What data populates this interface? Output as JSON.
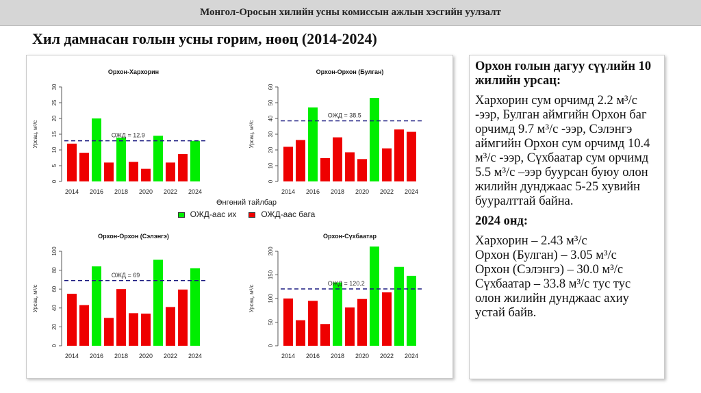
{
  "header": {
    "title": "Монгол-Оросын хилийн усны комиссын ажлын хэсгийн уулзалт"
  },
  "page_title": "Хил дамнасан голын усны горим, нөөц (2014-2024)",
  "colors": {
    "above": "#00ee00",
    "below": "#ee0000",
    "mean_line": "#1a1a80"
  },
  "legend": {
    "title": "Өнгөний тайлбар",
    "above_label": "ОЖД-аас их",
    "below_label": "ОЖД-аас бага"
  },
  "chart_data": [
    {
      "type": "bar",
      "title": "Орхон-Хархорин",
      "ylabel": "Урсац, м³/с",
      "x": [
        2014,
        2015,
        2016,
        2017,
        2018,
        2019,
        2020,
        2021,
        2022,
        2023,
        2024
      ],
      "x_tick_labels": [
        "2014",
        "2016",
        "2018",
        "2020",
        "2022",
        "2024"
      ],
      "values": [
        12,
        9.1,
        20,
        6,
        13.9,
        6.2,
        4,
        14.5,
        6,
        8.7,
        12.9
      ],
      "above_mean": [
        false,
        false,
        true,
        false,
        true,
        false,
        false,
        true,
        false,
        false,
        true
      ],
      "yticks": [
        0,
        5,
        10,
        15,
        20,
        25,
        30
      ],
      "ylim": [
        0,
        30
      ],
      "mean": 12.9,
      "mean_label": "ОЖД = 12.9"
    },
    {
      "type": "bar",
      "title": "Орхон-Орхон (Булган)",
      "ylabel": "Урсац, м³/с",
      "x": [
        2014,
        2015,
        2016,
        2017,
        2018,
        2019,
        2020,
        2021,
        2022,
        2023,
        2024
      ],
      "x_tick_labels": [
        "2014",
        "2016",
        "2018",
        "2020",
        "2022",
        "2024"
      ],
      "values": [
        22,
        26.3,
        47,
        14.8,
        28,
        18.5,
        14.2,
        53,
        21,
        33,
        31.5
      ],
      "above_mean": [
        false,
        false,
        true,
        false,
        false,
        false,
        false,
        true,
        false,
        false,
        false
      ],
      "yticks": [
        0,
        10,
        20,
        30,
        40,
        50,
        60
      ],
      "ylim": [
        0,
        60
      ],
      "mean": 38.5,
      "mean_label": "ОЖД = 38.5"
    },
    {
      "type": "bar",
      "title": "Орхон-Орхон (Сэлэнгэ)",
      "ylabel": "Урсац, м³/с",
      "x": [
        2014,
        2015,
        2016,
        2017,
        2018,
        2019,
        2020,
        2021,
        2022,
        2023,
        2024
      ],
      "x_tick_labels": [
        "2014",
        "2016",
        "2018",
        "2020",
        "2022",
        "2024"
      ],
      "values": [
        55,
        43,
        84,
        29.5,
        60,
        34.5,
        34,
        91,
        41,
        59.5,
        82
      ],
      "above_mean": [
        false,
        false,
        true,
        false,
        false,
        false,
        false,
        true,
        false,
        false,
        true
      ],
      "yticks": [
        0,
        20,
        40,
        60,
        80,
        100
      ],
      "ylim": [
        0,
        100
      ],
      "mean": 69,
      "mean_label": "ОЖД = 69"
    },
    {
      "type": "bar",
      "title": "Орхон-Сүхбаатар",
      "ylabel": "Урсац, м³/с",
      "x": [
        2014,
        2015,
        2016,
        2017,
        2018,
        2019,
        2020,
        2021,
        2022,
        2023,
        2024
      ],
      "x_tick_labels": [
        "2014",
        "2016",
        "2018",
        "2020",
        "2022",
        "2024"
      ],
      "values": [
        100,
        54,
        95,
        46,
        134,
        81,
        99,
        210,
        113,
        167,
        148
      ],
      "above_mean": [
        false,
        false,
        false,
        false,
        true,
        false,
        false,
        true,
        false,
        true,
        true
      ],
      "yticks": [
        0,
        50,
        100,
        150,
        200
      ],
      "ylim": [
        0,
        200
      ],
      "mean": 120.2,
      "mean_label": "ОЖД = 120.2"
    }
  ],
  "side": {
    "heading": "Орхон голын дагуу сүүлийн 10 жилийн урсац:",
    "paragraph": "Хархорин сум орчимд 2.2 м³/с -ээр, Булган аймгийн Орхон баг орчимд 9.7 м³/с -ээр, Сэлэнгэ аймгийн Орхон сум орчимд 10.4 м³/с -ээр, Сүхбаатар сум орчимд 5.5 м³/с –ээр буурсан буюу олон жилийн дунджаас 5-25 хувийн бууралттай байна.",
    "heading2": "2024 онд:",
    "lines": [
      "Хархорин – 2.43 м³/с",
      "Орхон (Булган) – 3.05 м³/с",
      "Орхон (Сэлэнгэ) – 30.0 м³/с",
      "Сүхбаатар – 33.8 м³/с тус тус олон жилийн дунджаас ахиу устай байв."
    ]
  }
}
